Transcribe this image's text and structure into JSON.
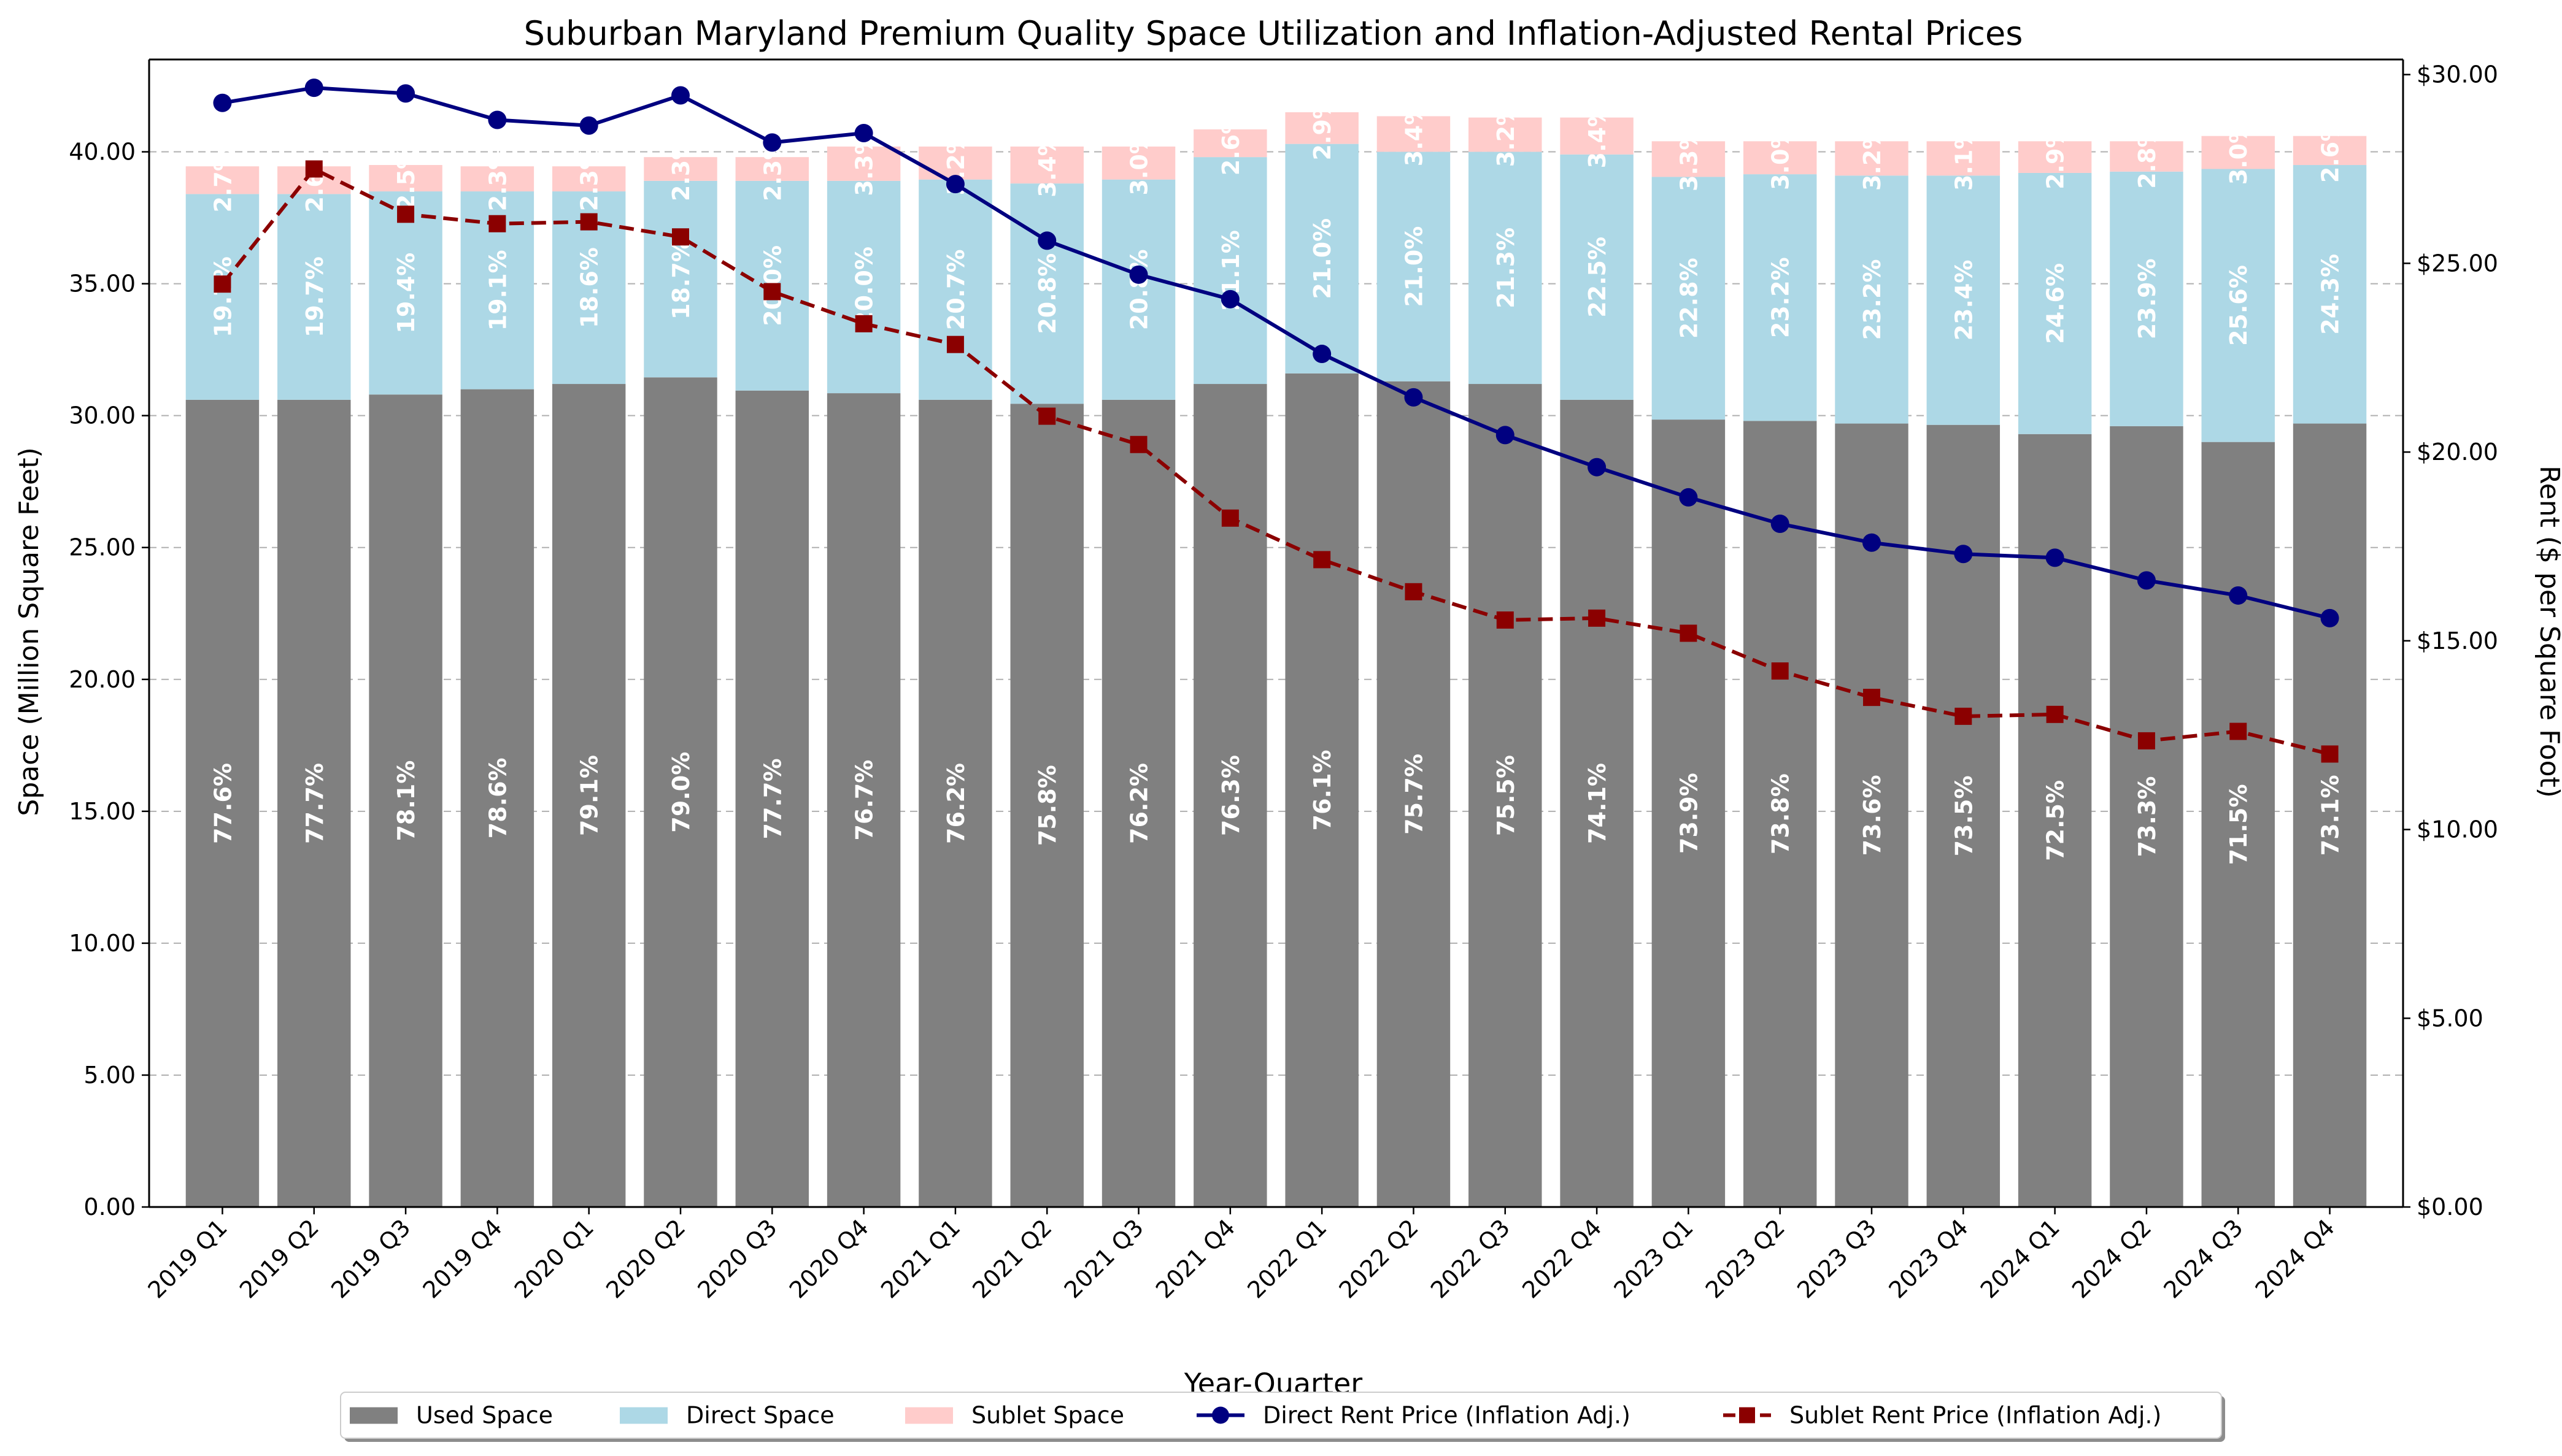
{
  "chart_data": {
    "type": "bar",
    "title": "Suburban Maryland Premium Quality Space Utilization and Inflation-Adjusted Rental Prices",
    "xlabel": "Year-Quarter",
    "ylabel": "Space (Million Square Feet)",
    "ylabel_right": "Rent ($ per Square Foot)",
    "ylim": [
      0,
      43.5
    ],
    "ylim_right": [
      0,
      30.4
    ],
    "yticks": [
      "0.00",
      "5.00",
      "10.00",
      "15.00",
      "20.00",
      "25.00",
      "30.00",
      "35.00",
      "40.00"
    ],
    "yticks_right": [
      "$0.00",
      "$5.00",
      "$10.00",
      "$15.00",
      "$20.00",
      "$25.00",
      "$30.00"
    ],
    "grid": "horizontal dashed",
    "legend_position": "bottom-center",
    "categories": [
      "2019 Q1",
      "2019 Q2",
      "2019 Q3",
      "2019 Q4",
      "2020 Q1",
      "2020 Q2",
      "2020 Q3",
      "2020 Q4",
      "2021 Q1",
      "2021 Q2",
      "2021 Q3",
      "2021 Q4",
      "2022 Q1",
      "2022 Q2",
      "2022 Q3",
      "2022 Q4",
      "2023 Q1",
      "2023 Q2",
      "2023 Q3",
      "2023 Q4",
      "2024 Q1",
      "2024 Q2",
      "2024 Q3",
      "2024 Q4"
    ],
    "series": [
      {
        "name": "Used Space",
        "kind": "bar",
        "color": "#808080",
        "values": [
          30.6,
          30.6,
          30.8,
          31.0,
          31.2,
          31.45,
          30.95,
          30.85,
          30.6,
          30.45,
          30.6,
          31.2,
          31.6,
          31.3,
          31.2,
          30.6,
          29.85,
          29.8,
          29.7,
          29.65,
          29.3,
          29.6,
          29.0,
          29.7
        ],
        "labels": [
          "77.6%",
          "77.7%",
          "78.1%",
          "78.6%",
          "79.1%",
          "79.0%",
          "77.7%",
          "76.7%",
          "76.2%",
          "75.8%",
          "76.2%",
          "76.3%",
          "76.1%",
          "75.7%",
          "75.5%",
          "74.1%",
          "73.9%",
          "73.8%",
          "73.6%",
          "73.5%",
          "72.5%",
          "73.3%",
          "71.5%",
          "73.1%"
        ]
      },
      {
        "name": "Direct Space",
        "kind": "bar",
        "color": "#add8e6",
        "values": [
          7.8,
          7.8,
          7.7,
          7.5,
          7.3,
          7.45,
          7.95,
          8.05,
          8.35,
          8.35,
          8.35,
          8.6,
          8.7,
          8.7,
          8.8,
          9.3,
          9.2,
          9.35,
          9.4,
          9.45,
          9.9,
          9.65,
          10.35,
          9.8
        ],
        "labels": [
          "19.7%",
          "19.7%",
          "19.4%",
          "19.1%",
          "18.6%",
          "18.7%",
          "20.0%",
          "20.0%",
          "20.7%",
          "20.8%",
          "20.8%",
          "21.1%",
          "21.0%",
          "21.0%",
          "21.3%",
          "22.5%",
          "22.8%",
          "23.2%",
          "23.2%",
          "23.4%",
          "24.6%",
          "23.9%",
          "25.6%",
          "24.3%"
        ]
      },
      {
        "name": "Sublet Space",
        "kind": "bar",
        "color": "#ffcccb",
        "values": [
          1.05,
          1.05,
          1.0,
          0.95,
          0.95,
          0.9,
          0.9,
          1.3,
          1.25,
          1.4,
          1.25,
          1.05,
          1.2,
          1.35,
          1.3,
          1.4,
          1.35,
          1.25,
          1.3,
          1.3,
          1.2,
          1.15,
          1.25,
          1.1
        ],
        "labels": [
          "2.7%",
          "2.6%",
          "2.5%",
          "2.3%",
          "2.3%",
          "2.3%",
          "2.3%",
          "3.3%",
          "3.2%",
          "3.4%",
          "3.0%",
          "2.6%",
          "2.9%",
          "3.4%",
          "3.2%",
          "3.4%",
          "3.3%",
          "3.0%",
          "3.2%",
          "3.1%",
          "2.9%",
          "2.8%",
          "3.0%",
          "2.6%"
        ]
      },
      {
        "name": "Direct Rent Price (Inflation Adj.)",
        "kind": "line",
        "axis": "right",
        "color": "#000080",
        "style": "solid",
        "marker": "circle",
        "values": [
          29.25,
          29.65,
          29.5,
          28.8,
          28.65,
          29.45,
          28.2,
          28.45,
          27.1,
          25.6,
          24.7,
          24.05,
          22.6,
          21.45,
          20.45,
          19.6,
          18.8,
          18.1,
          17.6,
          17.3,
          17.2,
          16.6,
          16.2,
          15.6
        ]
      },
      {
        "name": "Sublet Rent Price (Inflation Adj.)",
        "kind": "line",
        "axis": "right",
        "color": "#8b0000",
        "style": "dashed",
        "marker": "square",
        "values": [
          24.45,
          27.5,
          26.3,
          26.05,
          26.1,
          25.7,
          24.25,
          23.4,
          22.85,
          20.95,
          20.2,
          18.25,
          17.15,
          16.3,
          15.55,
          15.6,
          15.2,
          14.2,
          13.5,
          13.0,
          13.05,
          12.35,
          12.6,
          12.0
        ]
      }
    ]
  }
}
